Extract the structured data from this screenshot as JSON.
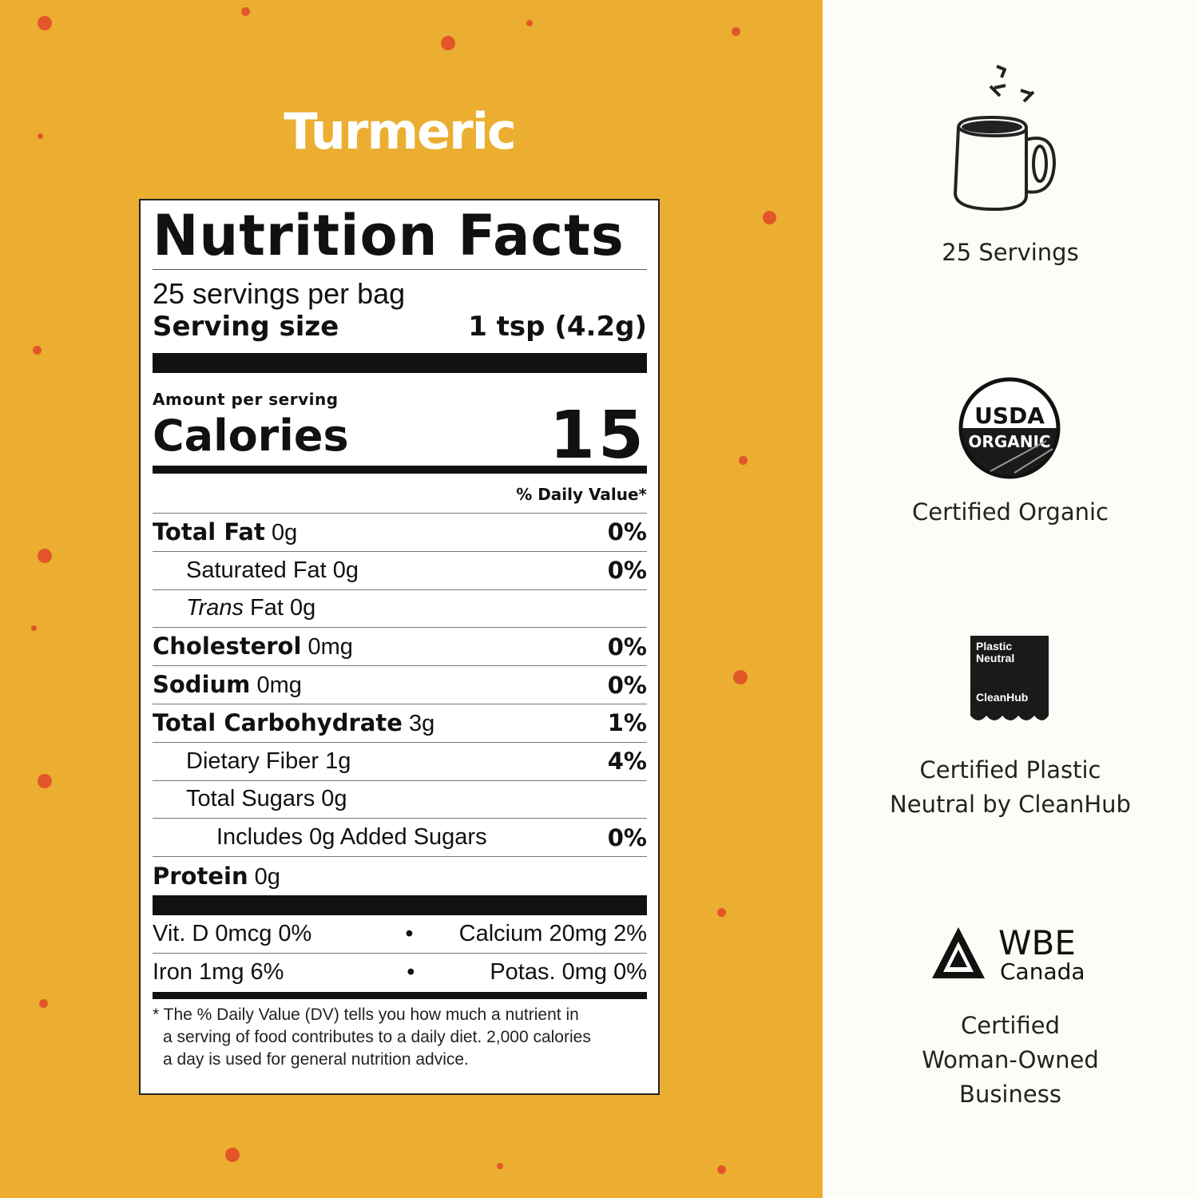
{
  "title": "Turmeric",
  "label": {
    "heading": "Nutrition Facts",
    "servings_per": "25 servings per bag",
    "serving_size_label": "Serving size",
    "serving_size_value": "1 tsp (4.2g)",
    "amount_per": "Amount per serving",
    "calories_label": "Calories",
    "calories_value": "15",
    "dv_header": "% Daily Value*",
    "rows": [
      {
        "name": "Total Fat",
        "amount": "0g",
        "dv": "0%"
      },
      {
        "name": "Saturated Fat",
        "amount": "0g",
        "dv": "0%"
      },
      {
        "name": "Trans",
        "amount": "Fat 0g",
        "dv": ""
      },
      {
        "name": "Cholesterol",
        "amount": "0mg",
        "dv": "0%"
      },
      {
        "name": "Sodium",
        "amount": "0mg",
        "dv": "0%"
      },
      {
        "name": "Total Carbohydrate",
        "amount": "3g",
        "dv": "1%"
      },
      {
        "name": "Dietary Fiber",
        "amount": "1g",
        "dv": "4%"
      },
      {
        "name": "Total Sugars",
        "amount": "0g",
        "dv": ""
      },
      {
        "name": "Includes 0g Added Sugars",
        "amount": "",
        "dv": "0%"
      },
      {
        "name": "Protein",
        "amount": "0g",
        "dv": ""
      }
    ],
    "vitamins": [
      {
        "left": "Vit. D 0mcg 0%",
        "sep": "•",
        "right": "Calcium 20mg 2%"
      },
      {
        "left": "Iron 1mg 6%",
        "sep": "•",
        "right": "Potas. 0mg 0%"
      }
    ],
    "footnote": [
      "* The % Daily Value (DV) tells you how much a nutrient in",
      "a serving of food contributes to a daily diet. 2,000 calories",
      "a day is used for general nutrition advice."
    ]
  },
  "features": [
    {
      "icon": "mug-icon",
      "text": "25 Servings"
    },
    {
      "icon": "usda-organic-seal",
      "text": "Certified Organic",
      "logo_text": [
        "USDA",
        "ORGANIC"
      ]
    },
    {
      "icon": "plastic-neutral-badge",
      "text_lines": [
        "Certified Plastic",
        "Neutral by CleanHub"
      ],
      "logo_text": [
        "Plastic",
        "Neutral",
        "CleanHub"
      ]
    },
    {
      "icon": "wbe-canada-logo",
      "text_lines": [
        "Certified",
        "Woman-Owned",
        "Business"
      ],
      "logo_text": [
        "WBE",
        "Canada"
      ]
    }
  ],
  "colors": {
    "background": "#ebae30",
    "dots": "#e3562a",
    "panel": "#fdfdf7",
    "text": "#111111"
  }
}
